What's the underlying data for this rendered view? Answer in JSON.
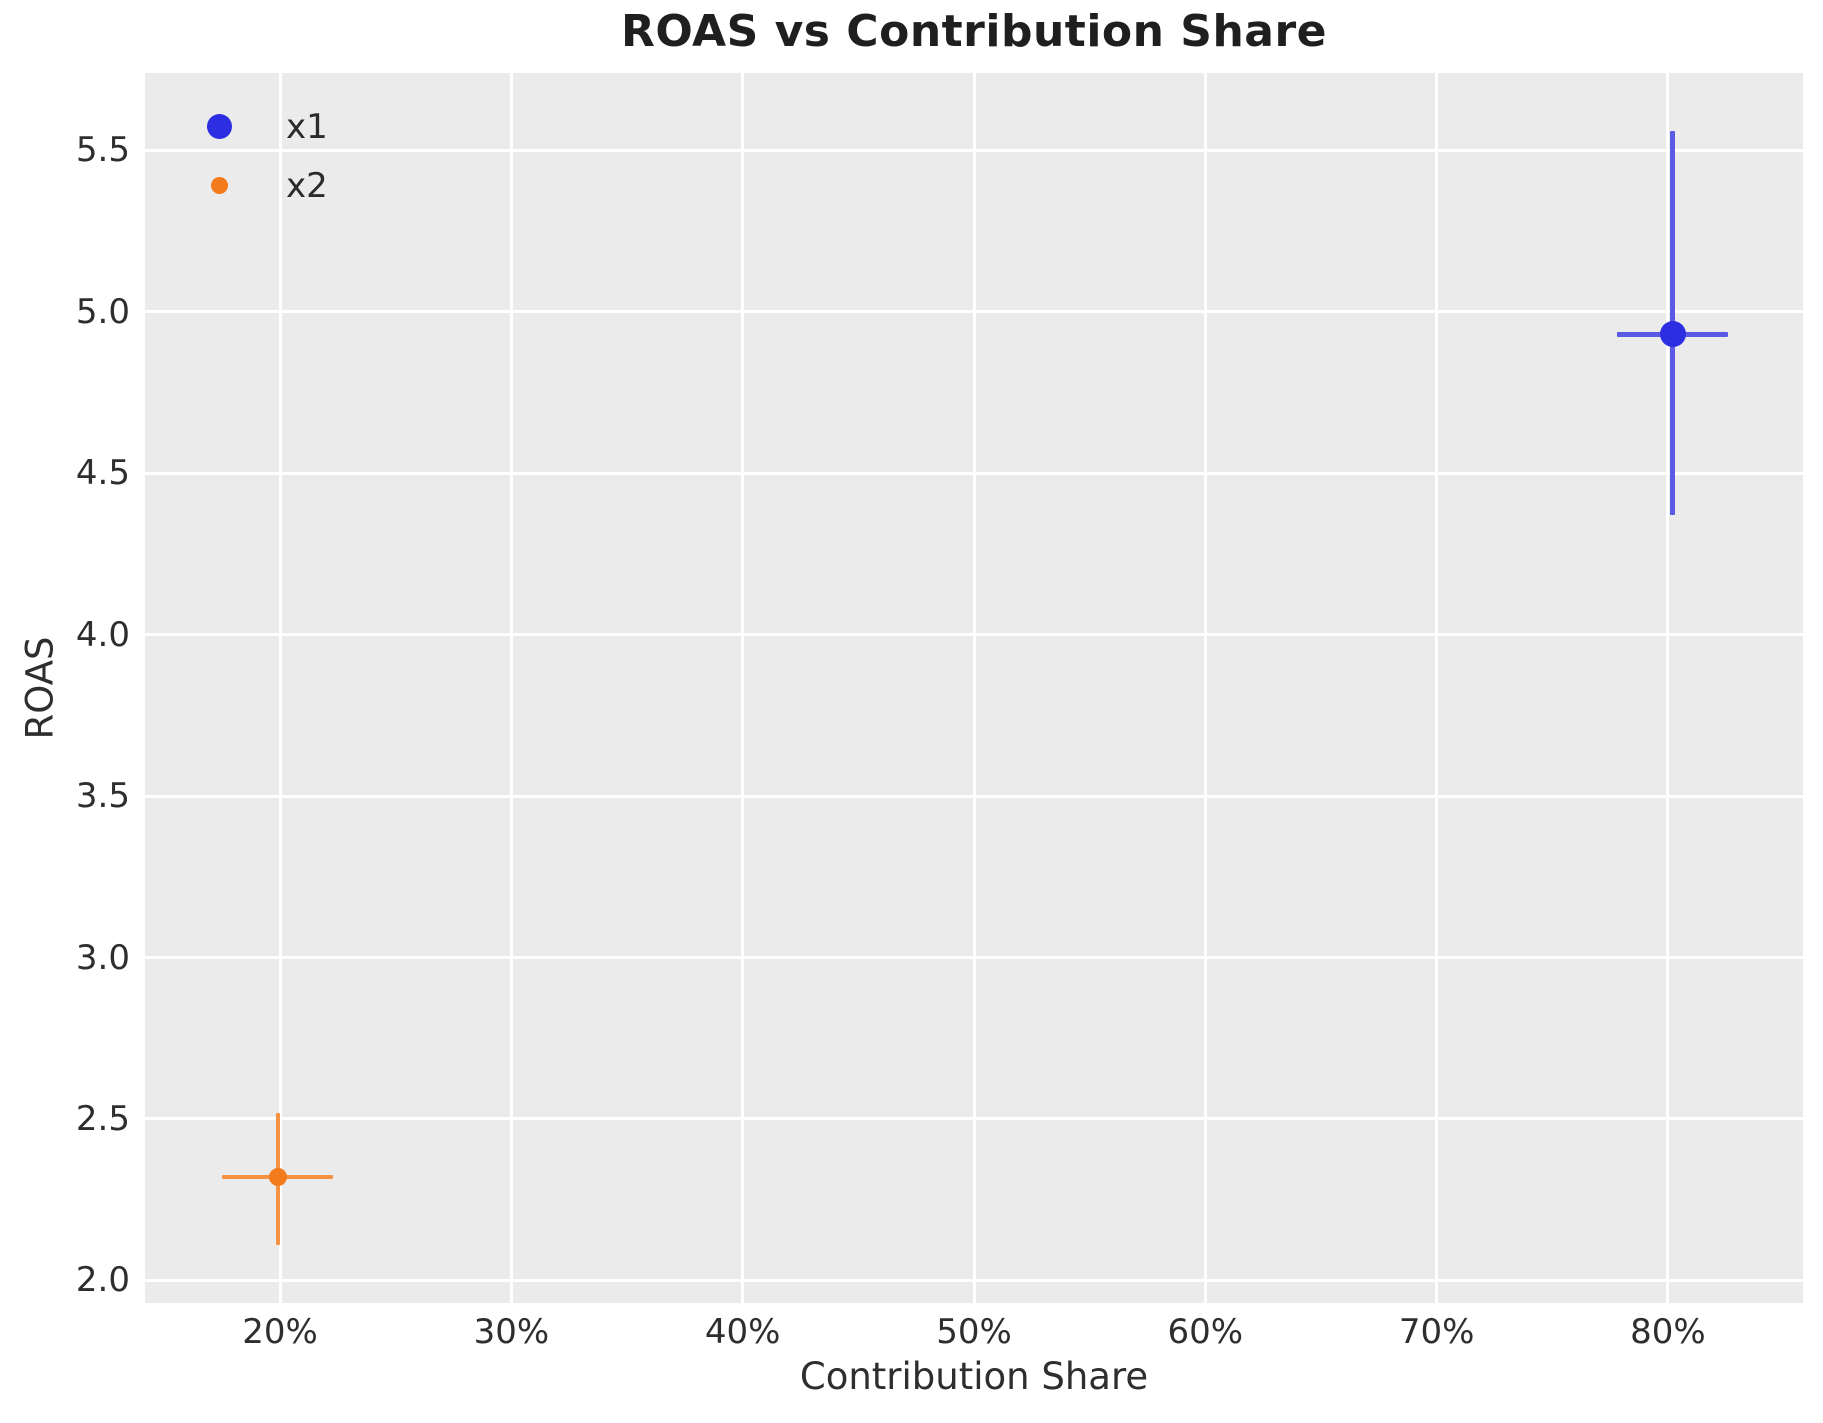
{
  "chart_data": {
    "type": "scatter",
    "title": "ROAS vs Contribution Share",
    "xlabel": "Contribution Share",
    "ylabel": "ROAS",
    "grid": true,
    "legend_position": "upper left",
    "xlim": [
      14.16,
      85.84
    ],
    "ylim": [
      1.93,
      5.74
    ],
    "x_ticks": [
      {
        "value": 20,
        "label": "20%"
      },
      {
        "value": 30,
        "label": "30%"
      },
      {
        "value": 40,
        "label": "40%"
      },
      {
        "value": 50,
        "label": "50%"
      },
      {
        "value": 60,
        "label": "60%"
      },
      {
        "value": 70,
        "label": "70%"
      },
      {
        "value": 80,
        "label": "80%"
      }
    ],
    "y_ticks": [
      {
        "value": 2.0,
        "label": "2.0"
      },
      {
        "value": 2.5,
        "label": "2.5"
      },
      {
        "value": 3.0,
        "label": "3.0"
      },
      {
        "value": 3.5,
        "label": "3.5"
      },
      {
        "value": 4.0,
        "label": "4.0"
      },
      {
        "value": 4.5,
        "label": "4.5"
      },
      {
        "value": 5.0,
        "label": "5.0"
      },
      {
        "value": 5.5,
        "label": "5.5"
      }
    ],
    "series": [
      {
        "name": "x1",
        "x": 80.2,
        "y": 4.93,
        "x_err": 2.4,
        "y_err_low": 0.56,
        "y_err_high": 0.63,
        "marker_color": "#2d2de2",
        "bar_color": "#5a5ae4",
        "marker_diameter": 26,
        "legend_dot_diameter": 25
      },
      {
        "name": "x2",
        "x": 19.9,
        "y": 2.32,
        "x_err": 2.4,
        "y_err_low": 0.21,
        "y_err_high": 0.2,
        "marker_color": "#f47b1c",
        "bar_color": "#f79243",
        "marker_diameter": 18,
        "legend_dot_diameter": 17
      }
    ],
    "colors": {
      "panel_background": "#ebebeb",
      "figure_background": "#ffffff",
      "gridline": "#ffffff",
      "text": "#2e2e2e",
      "title_text": "#1f1f1f"
    }
  }
}
